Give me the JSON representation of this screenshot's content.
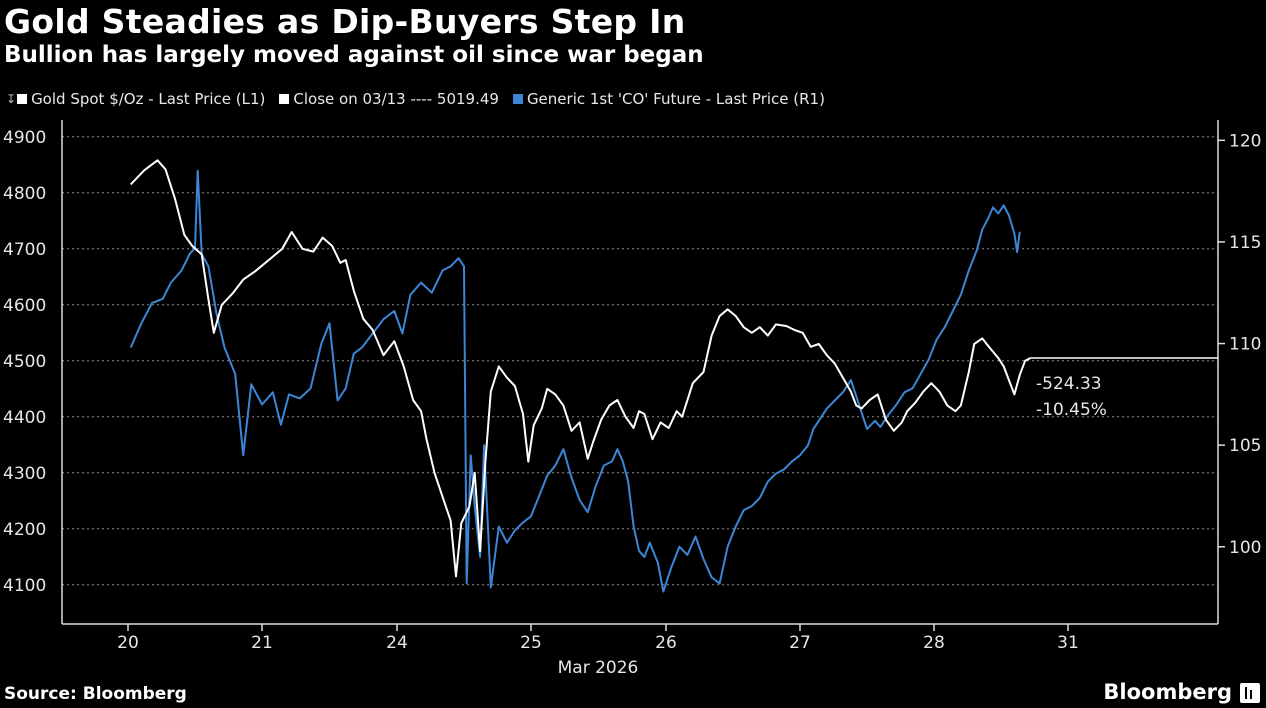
{
  "header": {
    "title": "Gold Steadies as Dip-Buyers Step In",
    "subtitle": "Bullion has largely moved against oil since war began"
  },
  "legend": {
    "gold": "Gold Spot $/Oz - Last Price (L1)",
    "close": "Close on 03/13 ---- 5019.49",
    "oil": "Generic 1st 'CO' Future - Last Price (R1)"
  },
  "annotations": {
    "change_abs": "-524.33",
    "change_pct": "-10.45%"
  },
  "footer": {
    "source": "Source: Bloomberg",
    "brand": "Bloomberg"
  },
  "colors": {
    "gold": "#ffffff",
    "oil": "#3d86d6",
    "grid": "#8a8a8a",
    "background": "#000000"
  },
  "chart_data": {
    "type": "line",
    "title": "Gold Steadies as Dip-Buyers Step In",
    "subtitle": "Bullion has largely moved against oil since war began",
    "xlabel": "Mar 2026",
    "x_ticks": [
      "20",
      "21",
      "24",
      "25",
      "26",
      "27",
      "28",
      "31"
    ],
    "x_range": [
      19.5,
      26.15
    ],
    "left_axis": {
      "ylim": [
        4030,
        4930
      ],
      "ticks": [
        4100,
        4200,
        4300,
        4400,
        4500,
        4600,
        4700,
        4800,
        4900
      ]
    },
    "right_axis": {
      "ylim": [
        96.2,
        121
      ],
      "ticks": [
        100,
        105,
        110,
        115,
        120
      ]
    },
    "grid": true,
    "series": [
      {
        "name": "Gold Spot $/Oz - Last Price (L1)",
        "axis": "left",
        "color": "#ffffff",
        "points": [
          [
            19.52,
            4815
          ],
          [
            19.62,
            4840
          ],
          [
            19.72,
            4858
          ],
          [
            19.78,
            4842
          ],
          [
            19.85,
            4790
          ],
          [
            19.92,
            4725
          ],
          [
            19.98,
            4705
          ],
          [
            20.05,
            4690
          ],
          [
            20.1,
            4610
          ],
          [
            20.14,
            4550
          ],
          [
            20.2,
            4600
          ],
          [
            20.28,
            4620
          ],
          [
            20.36,
            4645
          ],
          [
            20.45,
            4660
          ],
          [
            20.55,
            4680
          ],
          [
            20.65,
            4700
          ],
          [
            20.72,
            4730
          ],
          [
            20.8,
            4700
          ],
          [
            20.88,
            4695
          ],
          [
            20.95,
            4720
          ],
          [
            21.02,
            4705
          ],
          [
            21.08,
            4675
          ],
          [
            21.12,
            4680
          ],
          [
            21.18,
            4625
          ],
          [
            21.25,
            4575
          ],
          [
            21.32,
            4555
          ],
          [
            21.4,
            4510
          ],
          [
            21.48,
            4535
          ],
          [
            21.55,
            4490
          ],
          [
            21.62,
            4430
          ],
          [
            21.68,
            4410
          ],
          [
            21.72,
            4360
          ],
          [
            21.78,
            4300
          ],
          [
            21.85,
            4250
          ],
          [
            21.9,
            4215
          ],
          [
            21.94,
            4115
          ],
          [
            21.98,
            4210
          ],
          [
            22.04,
            4240
          ],
          [
            22.08,
            4300
          ],
          [
            22.12,
            4160
          ],
          [
            22.16,
            4320
          ],
          [
            22.2,
            4445
          ],
          [
            22.26,
            4490
          ],
          [
            22.32,
            4470
          ],
          [
            22.38,
            4455
          ],
          [
            22.44,
            4405
          ],
          [
            22.48,
            4320
          ],
          [
            22.52,
            4385
          ],
          [
            22.58,
            4415
          ],
          [
            22.62,
            4450
          ],
          [
            22.68,
            4440
          ],
          [
            22.74,
            4420
          ],
          [
            22.8,
            4375
          ],
          [
            22.86,
            4390
          ],
          [
            22.92,
            4325
          ],
          [
            22.96,
            4355
          ],
          [
            23.02,
            4395
          ],
          [
            23.08,
            4420
          ],
          [
            23.14,
            4430
          ],
          [
            23.2,
            4400
          ],
          [
            23.26,
            4380
          ],
          [
            23.3,
            4410
          ],
          [
            23.34,
            4405
          ],
          [
            23.4,
            4360
          ],
          [
            23.46,
            4390
          ],
          [
            23.52,
            4380
          ],
          [
            23.58,
            4410
          ],
          [
            23.62,
            4400
          ],
          [
            23.7,
            4460
          ],
          [
            23.78,
            4480
          ],
          [
            23.84,
            4545
          ],
          [
            23.9,
            4580
          ],
          [
            23.96,
            4592
          ],
          [
            24.02,
            4580
          ],
          [
            24.08,
            4560
          ],
          [
            24.14,
            4550
          ],
          [
            24.2,
            4560
          ],
          [
            24.26,
            4545
          ],
          [
            24.32,
            4565
          ],
          [
            24.4,
            4562
          ],
          [
            24.46,
            4555
          ],
          [
            24.52,
            4550
          ],
          [
            24.58,
            4525
          ],
          [
            24.64,
            4530
          ],
          [
            24.7,
            4510
          ],
          [
            24.76,
            4495
          ],
          [
            24.82,
            4470
          ],
          [
            24.88,
            4445
          ],
          [
            24.92,
            4420
          ],
          [
            24.96,
            4415
          ],
          [
            25.02,
            4430
          ],
          [
            25.08,
            4440
          ],
          [
            25.14,
            4395
          ],
          [
            25.2,
            4375
          ],
          [
            25.26,
            4390
          ],
          [
            25.3,
            4410
          ],
          [
            25.36,
            4425
          ],
          [
            25.42,
            4445
          ],
          [
            25.48,
            4460
          ],
          [
            25.54,
            4445
          ],
          [
            25.6,
            4420
          ],
          [
            25.66,
            4410
          ],
          [
            25.7,
            4420
          ],
          [
            25.76,
            4480
          ],
          [
            25.8,
            4530
          ],
          [
            25.86,
            4540
          ],
          [
            25.92,
            4522
          ],
          [
            25.98,
            4505
          ],
          [
            26.02,
            4490
          ],
          [
            26.06,
            4465
          ],
          [
            26.1,
            4440
          ],
          [
            26.14,
            4475
          ],
          [
            26.18,
            4500
          ],
          [
            26.22,
            4505
          ]
        ]
      },
      {
        "name": "Generic 1st 'CO' Future - Last Price (R1)",
        "axis": "right",
        "color": "#3d86d6",
        "points": [
          [
            19.52,
            109.8
          ],
          [
            19.6,
            111.0
          ],
          [
            19.68,
            112.0
          ],
          [
            19.76,
            112.2
          ],
          [
            19.82,
            113.0
          ],
          [
            19.9,
            113.6
          ],
          [
            19.96,
            114.4
          ],
          [
            20.0,
            114.7
          ],
          [
            20.02,
            118.5
          ],
          [
            20.05,
            114.4
          ],
          [
            20.1,
            113.8
          ],
          [
            20.16,
            111.5
          ],
          [
            20.22,
            109.8
          ],
          [
            20.3,
            108.5
          ],
          [
            20.36,
            104.5
          ],
          [
            20.42,
            108.0
          ],
          [
            20.5,
            107.0
          ],
          [
            20.58,
            107.6
          ],
          [
            20.64,
            106.0
          ],
          [
            20.7,
            107.5
          ],
          [
            20.78,
            107.3
          ],
          [
            20.86,
            107.8
          ],
          [
            20.94,
            110.0
          ],
          [
            21.0,
            111.0
          ],
          [
            21.06,
            107.2
          ],
          [
            21.12,
            107.8
          ],
          [
            21.18,
            109.5
          ],
          [
            21.24,
            109.8
          ],
          [
            21.32,
            110.5
          ],
          [
            21.4,
            111.2
          ],
          [
            21.48,
            111.6
          ],
          [
            21.54,
            110.5
          ],
          [
            21.6,
            112.4
          ],
          [
            21.68,
            113.0
          ],
          [
            21.76,
            112.5
          ],
          [
            21.84,
            113.6
          ],
          [
            21.9,
            113.8
          ],
          [
            21.96,
            114.2
          ],
          [
            22.0,
            113.8
          ],
          [
            22.02,
            98.2
          ],
          [
            22.05,
            104.5
          ],
          [
            22.08,
            102.0
          ],
          [
            22.12,
            99.5
          ],
          [
            22.15,
            105.0
          ],
          [
            22.2,
            98.0
          ],
          [
            22.26,
            101.0
          ],
          [
            22.32,
            100.2
          ],
          [
            22.38,
            100.8
          ],
          [
            22.44,
            101.2
          ],
          [
            22.5,
            101.5
          ],
          [
            22.56,
            102.5
          ],
          [
            22.62,
            103.5
          ],
          [
            22.68,
            104.0
          ],
          [
            22.74,
            104.8
          ],
          [
            22.8,
            103.4
          ],
          [
            22.86,
            102.3
          ],
          [
            22.92,
            101.7
          ],
          [
            22.98,
            103.0
          ],
          [
            23.04,
            104.0
          ],
          [
            23.1,
            104.2
          ],
          [
            23.14,
            104.8
          ],
          [
            23.18,
            104.2
          ],
          [
            23.22,
            103.2
          ],
          [
            23.26,
            101.0
          ],
          [
            23.3,
            99.8
          ],
          [
            23.34,
            99.5
          ],
          [
            23.38,
            100.2
          ],
          [
            23.44,
            99.2
          ],
          [
            23.48,
            97.8
          ],
          [
            23.54,
            99.0
          ],
          [
            23.6,
            100.0
          ],
          [
            23.66,
            99.6
          ],
          [
            23.72,
            100.5
          ],
          [
            23.78,
            99.4
          ],
          [
            23.84,
            98.5
          ],
          [
            23.9,
            98.2
          ],
          [
            23.96,
            100.0
          ],
          [
            24.02,
            101.0
          ],
          [
            24.08,
            101.8
          ],
          [
            24.14,
            102.0
          ],
          [
            24.2,
            102.4
          ],
          [
            24.26,
            103.2
          ],
          [
            24.32,
            103.6
          ],
          [
            24.38,
            103.8
          ],
          [
            24.44,
            104.2
          ],
          [
            24.5,
            104.5
          ],
          [
            24.56,
            105.0
          ],
          [
            24.6,
            105.8
          ],
          [
            24.64,
            106.2
          ],
          [
            24.7,
            106.8
          ],
          [
            24.76,
            107.2
          ],
          [
            24.82,
            107.6
          ],
          [
            24.88,
            108.2
          ],
          [
            24.94,
            107.0
          ],
          [
            25.0,
            105.8
          ],
          [
            25.06,
            106.2
          ],
          [
            25.1,
            105.9
          ],
          [
            25.16,
            106.5
          ],
          [
            25.22,
            107.0
          ],
          [
            25.28,
            107.6
          ],
          [
            25.34,
            107.8
          ],
          [
            25.4,
            108.5
          ],
          [
            25.46,
            109.2
          ],
          [
            25.52,
            110.2
          ],
          [
            25.58,
            110.8
          ],
          [
            25.64,
            111.6
          ],
          [
            25.7,
            112.4
          ],
          [
            25.76,
            113.6
          ],
          [
            25.82,
            114.6
          ],
          [
            25.86,
            115.6
          ],
          [
            25.9,
            116.1
          ],
          [
            25.94,
            116.7
          ],
          [
            25.98,
            116.4
          ],
          [
            26.02,
            116.8
          ],
          [
            26.06,
            116.3
          ],
          [
            26.1,
            115.4
          ],
          [
            26.12,
            114.5
          ],
          [
            26.14,
            115.5
          ]
        ]
      }
    ],
    "reference_line": {
      "label": "Close on 03/13",
      "value": 5019.49,
      "axis": "left"
    },
    "annotations": [
      "-524.33",
      "-10.45%"
    ]
  }
}
